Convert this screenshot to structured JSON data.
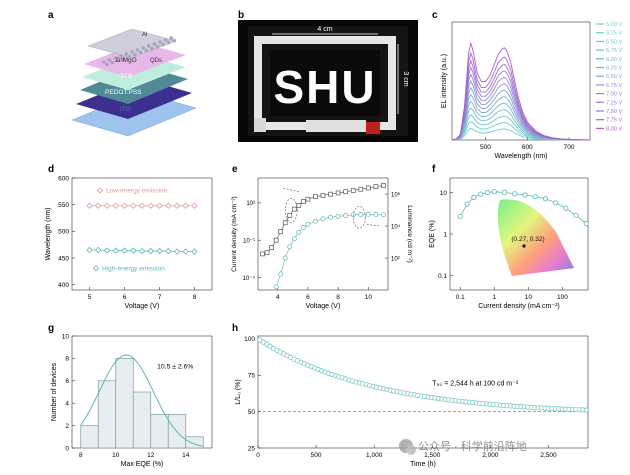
{
  "figure": {
    "panel_letters": [
      "a",
      "b",
      "c",
      "d",
      "e",
      "f",
      "g",
      "h"
    ],
    "watermark": "公众号 · 科学前沿阵地"
  },
  "panel_a": {
    "layers": [
      {
        "label": "Al",
        "color": "#c9c9d8"
      },
      {
        "label": "ZnMgO",
        "color": "#e9b8ea"
      },
      {
        "label": "QDs",
        "color": "#bfeede"
      },
      {
        "label": "TFB",
        "color": "#4f8a96"
      },
      {
        "label": "PEDOT:PSS",
        "color": "#3d2f8f"
      },
      {
        "label": "ITO",
        "color": "#9ec4ee"
      }
    ]
  },
  "panel_b": {
    "logo_text": "SHU",
    "width_label": "4 cm",
    "height_label": "3 cm"
  },
  "chart_data": [
    {
      "panel": "c",
      "type": "line",
      "xlabel": "Wavelength (nm)",
      "ylabel": "EL intensity (a.u.)",
      "xlim": [
        420,
        750
      ],
      "xticks": [
        500,
        600,
        700
      ],
      "x": [
        420,
        430,
        440,
        450,
        460,
        465,
        470,
        480,
        490,
        500,
        510,
        520,
        530,
        540,
        545,
        550,
        560,
        570,
        580,
        590,
        600,
        620,
        640,
        660,
        680,
        700,
        720,
        750
      ],
      "shape": [
        0,
        0.01,
        0.05,
        0.3,
        0.78,
        0.86,
        0.8,
        0.6,
        0.52,
        0.52,
        0.57,
        0.66,
        0.76,
        0.81,
        0.82,
        0.8,
        0.7,
        0.52,
        0.36,
        0.24,
        0.16,
        0.08,
        0.04,
        0.02,
        0.01,
        0.005,
        0.002,
        0
      ],
      "legend_position": "right",
      "series": [
        {
          "name": "5.00 V",
          "peak": 0.12,
          "color": "#6ad3c4"
        },
        {
          "name": "5.25 V",
          "peak": 0.19,
          "color": "#70cdc9"
        },
        {
          "name": "5.50 V",
          "peak": 0.26,
          "color": "#74c5cc"
        },
        {
          "name": "5.75 V",
          "peak": 0.33,
          "color": "#78bccf"
        },
        {
          "name": "6.00 V",
          "peak": 0.4,
          "color": "#7cb2d1"
        },
        {
          "name": "6.25 V",
          "peak": 0.47,
          "color": "#80a8d3"
        },
        {
          "name": "6.50 V",
          "peak": 0.54,
          "color": "#859dd5"
        },
        {
          "name": "6.75 V",
          "peak": 0.61,
          "color": "#8b92d6"
        },
        {
          "name": "7.00 V",
          "peak": 0.68,
          "color": "#9187d6"
        },
        {
          "name": "7.25 V",
          "peak": 0.75,
          "color": "#987bd5"
        },
        {
          "name": "7.50 V",
          "peak": 0.82,
          "color": "#9f70d2"
        },
        {
          "name": "7.75 V",
          "peak": 0.9,
          "color": "#a665cf"
        },
        {
          "name": "8.00 V",
          "peak": 1.0,
          "color": "#b05bcb"
        }
      ]
    },
    {
      "panel": "d",
      "type": "line",
      "xlabel": "Voltage (V)",
      "ylabel": "Wavelength (nm)",
      "xlim": [
        4.5,
        8.5
      ],
      "ylim": [
        390,
        600
      ],
      "xticks": [
        5,
        6,
        7,
        8
      ],
      "yticks": [
        400,
        450,
        500,
        550,
        600
      ],
      "x": [
        5.0,
        5.25,
        5.5,
        5.75,
        6.0,
        6.25,
        6.5,
        6.75,
        7.0,
        7.25,
        7.5,
        7.75,
        8.0
      ],
      "series": [
        {
          "name": "Low-energy emission",
          "values": [
            548,
            548,
            548,
            548,
            548,
            548,
            548,
            548,
            548,
            548,
            548,
            548,
            548
          ],
          "color": "#e39a96"
        },
        {
          "name": "High-energy emission",
          "values": [
            465,
            465,
            464,
            464,
            464,
            464,
            463,
            463,
            463,
            463,
            462,
            462,
            462
          ],
          "color": "#5fb4b4"
        }
      ]
    },
    {
      "panel": "e",
      "type": "line",
      "xlabel": "Voltage (V)",
      "ylabel": "Current density (mA cm⁻²)",
      "y2label": "Luminance (cd m⁻²)",
      "xlim": [
        2.7,
        11.3
      ],
      "xticks": [
        4,
        6,
        8,
        10
      ],
      "y_log_range": [
        -5,
        4
      ],
      "y_ticks_labels": [
        "10⁻⁴",
        "10⁻¹",
        "10²"
      ],
      "y2_log_range": [
        0,
        7
      ],
      "y2_ticks_labels": [
        "10²",
        "10⁴",
        "10⁶"
      ],
      "series": [
        {
          "name": "Current density",
          "axis": "left",
          "color": "#555555",
          "x": [
            3.0,
            3.3,
            3.6,
            3.9,
            4.2,
            4.5,
            4.8,
            5.1,
            5.4,
            5.7,
            6.0,
            6.5,
            7.0,
            7.5,
            8.0,
            8.5,
            9.0,
            9.5,
            10.0,
            10.5,
            11.0
          ],
          "values_log10": [
            -2.1,
            -2.0,
            -1.6,
            -1.0,
            -0.3,
            0.4,
            1.0,
            1.5,
            1.8,
            2.1,
            2.3,
            2.5,
            2.6,
            2.7,
            2.8,
            2.9,
            3.0,
            3.1,
            3.2,
            3.3,
            3.4
          ]
        },
        {
          "name": "Luminance",
          "axis": "right",
          "color": "#5fb4b4",
          "x": [
            3.9,
            4.2,
            4.5,
            4.8,
            5.1,
            5.4,
            5.7,
            6.0,
            6.5,
            7.0,
            7.5,
            8.0,
            8.5,
            9.0,
            9.5,
            10.0,
            10.5,
            11.0
          ],
          "values_log10": [
            0.2,
            1.0,
            2.0,
            2.7,
            3.2,
            3.6,
            3.9,
            4.1,
            4.3,
            4.45,
            4.55,
            4.6,
            4.65,
            4.7,
            4.72,
            4.73,
            4.72,
            4.7
          ]
        }
      ]
    },
    {
      "panel": "f",
      "type": "line",
      "xlabel": "Current density (mA cm⁻²)",
      "ylabel": "EQE (%)",
      "x_log_range": [
        -1.3,
        2.75
      ],
      "x_ticks_labels": [
        "0.1",
        "1",
        "10",
        "100"
      ],
      "y_log_range": [
        -1.35,
        1.35
      ],
      "y_ticks_labels": [
        "0.1",
        "1",
        "10"
      ],
      "series": [
        {
          "name": "EQE",
          "color": "#5fb4b4",
          "x_log10": [
            -1.0,
            -0.8,
            -0.6,
            -0.4,
            -0.2,
            0.0,
            0.3,
            0.6,
            0.9,
            1.2,
            1.5,
            1.8,
            2.1,
            2.4,
            2.7
          ],
          "y_log10": [
            0.42,
            0.72,
            0.88,
            0.96,
            1.0,
            1.02,
            1.0,
            0.97,
            0.94,
            0.9,
            0.85,
            0.75,
            0.62,
            0.45,
            0.25
          ]
        }
      ],
      "inset_label": "(0.27, 0.32)"
    },
    {
      "panel": "g",
      "type": "bar",
      "xlabel": "Max EQE (%)",
      "ylabel": "Number of devices",
      "xlim": [
        7.5,
        15.5
      ],
      "ylim": [
        0,
        10
      ],
      "xticks": [
        8,
        10,
        12,
        14
      ],
      "yticks": [
        0,
        2,
        4,
        6,
        8,
        10
      ],
      "bin_width": 1,
      "bin_centers": [
        8.5,
        9.5,
        10.5,
        11.5,
        12.5,
        13.5,
        14.5
      ],
      "values": [
        2,
        6,
        8,
        5,
        3,
        3,
        1
      ],
      "annotation": "10.5 ± 2.6%"
    },
    {
      "panel": "h",
      "type": "scatter",
      "xlabel": "Time (h)",
      "ylabel": "L/L₀ (%)",
      "xlim": [
        0,
        2840
      ],
      "ylim": [
        25,
        102
      ],
      "xticks": [
        0,
        500,
        1000,
        1500,
        2000,
        2500
      ],
      "xtick_labels": [
        "0",
        "500",
        "1,000",
        "1,500",
        "2,000",
        "2,500"
      ],
      "yticks": [
        25,
        50,
        75,
        100
      ],
      "reference_line_y": 50,
      "decay": {
        "start": 100,
        "floor": 50,
        "amplitude": 52,
        "tau_h": 1000
      },
      "n_points": 96,
      "annotation": "T₅₀ = 2,544 h at 100 cd m⁻²"
    }
  ]
}
